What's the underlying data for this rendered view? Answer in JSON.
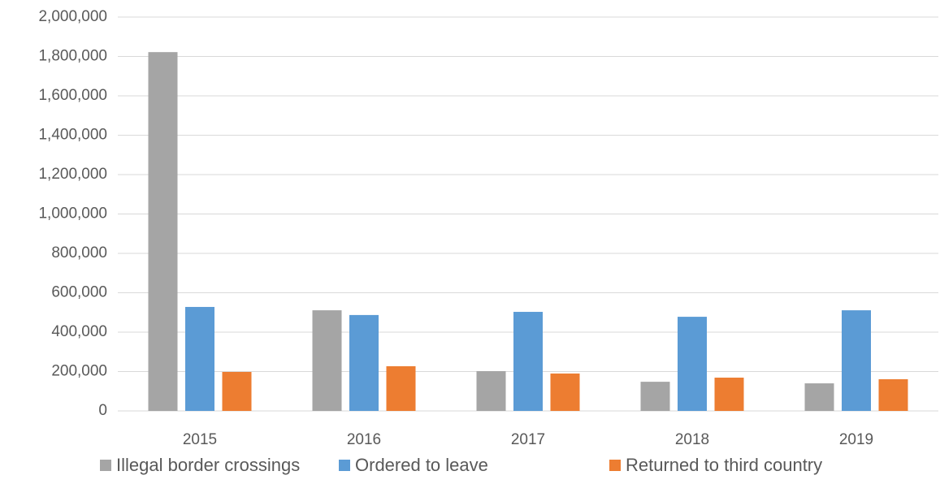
{
  "chart_data": {
    "type": "bar",
    "categories": [
      "2015",
      "2016",
      "2017",
      "2018",
      "2019"
    ],
    "series": [
      {
        "name": "Illegal border crossings",
        "color": "#a5a5a5",
        "values": [
          1822000,
          511000,
          202000,
          148000,
          140000
        ]
      },
      {
        "name": "Ordered to leave",
        "color": "#5b9bd5",
        "values": [
          528000,
          487000,
          503000,
          478000,
          511000
        ]
      },
      {
        "name": "Returned to third country",
        "color": "#ed7d31",
        "values": [
          198000,
          227000,
          190000,
          169000,
          161000
        ]
      }
    ],
    "ylim": [
      0,
      2000000
    ],
    "yticks": [
      0,
      {
        "value": 200000,
        "label": "200,000"
      },
      {
        "value": 400000,
        "label": "400,000"
      },
      {
        "value": 600000,
        "label": "600,000"
      },
      {
        "value": 800000,
        "label": "800,000"
      },
      {
        "value": 1000000,
        "label": "1,000,000"
      },
      {
        "value": 1200000,
        "label": "1,200,000"
      },
      {
        "value": 1400000,
        "label": "1,400,000"
      },
      {
        "value": 1600000,
        "label": "1,600,000"
      },
      {
        "value": 1800000,
        "label": "1,800,000"
      },
      {
        "value": 2000000,
        "label": "2,000,000"
      }
    ],
    "grid": true,
    "legend": "bottom"
  }
}
